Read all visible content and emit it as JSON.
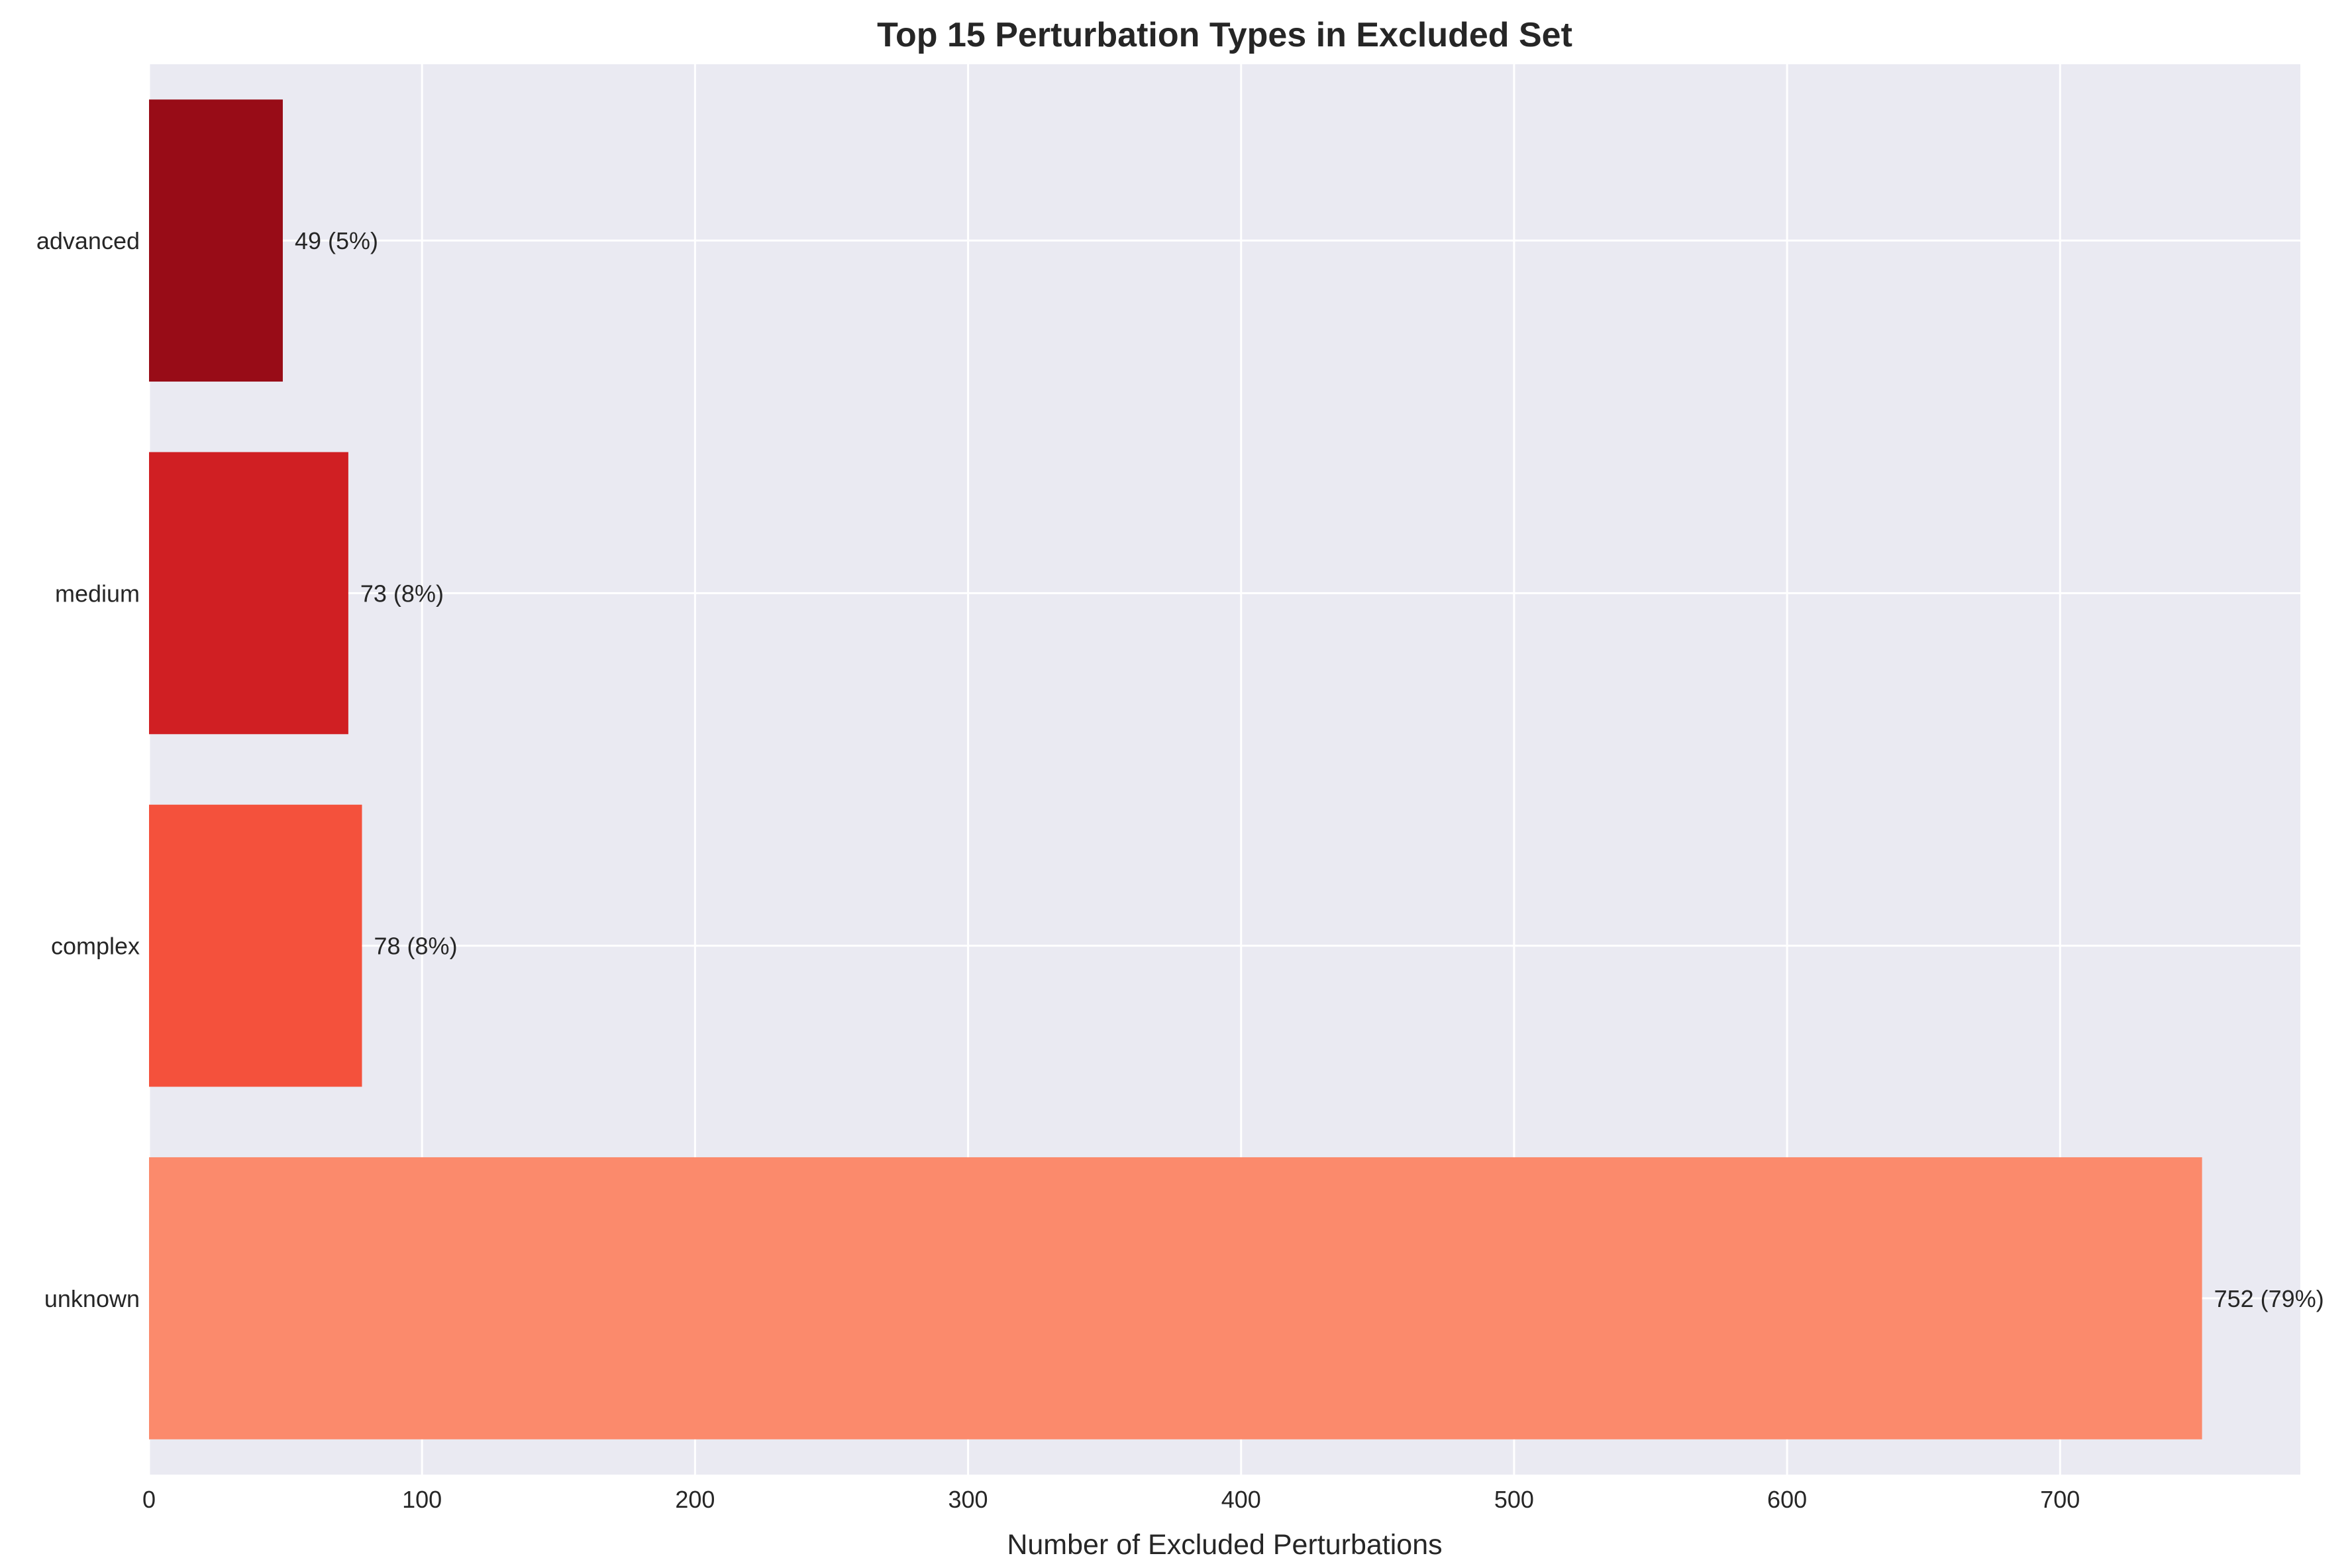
{
  "chart_data": {
    "type": "bar",
    "orientation": "horizontal",
    "title": "Top 15 Perturbation Types in Excluded Set",
    "xlabel": "Number of Excluded Perturbations",
    "ylabel": "",
    "xlim": [
      0,
      788
    ],
    "xticks": [
      0,
      100,
      200,
      300,
      400,
      500,
      600,
      700
    ],
    "grid": true,
    "legend": "none",
    "categories": [
      "unknown",
      "complex",
      "medium",
      "advanced"
    ],
    "values": [
      752,
      78,
      73,
      49
    ],
    "data_labels": [
      "752 (79%)",
      "78 (8%)",
      "73 (8%)",
      "49 (5%)"
    ],
    "colors": [
      "#fb8a6c",
      "#f4513c",
      "#d01f23",
      "#980c17"
    ],
    "background_color": "#eaeaf2",
    "grid_color": "#ffffff"
  }
}
